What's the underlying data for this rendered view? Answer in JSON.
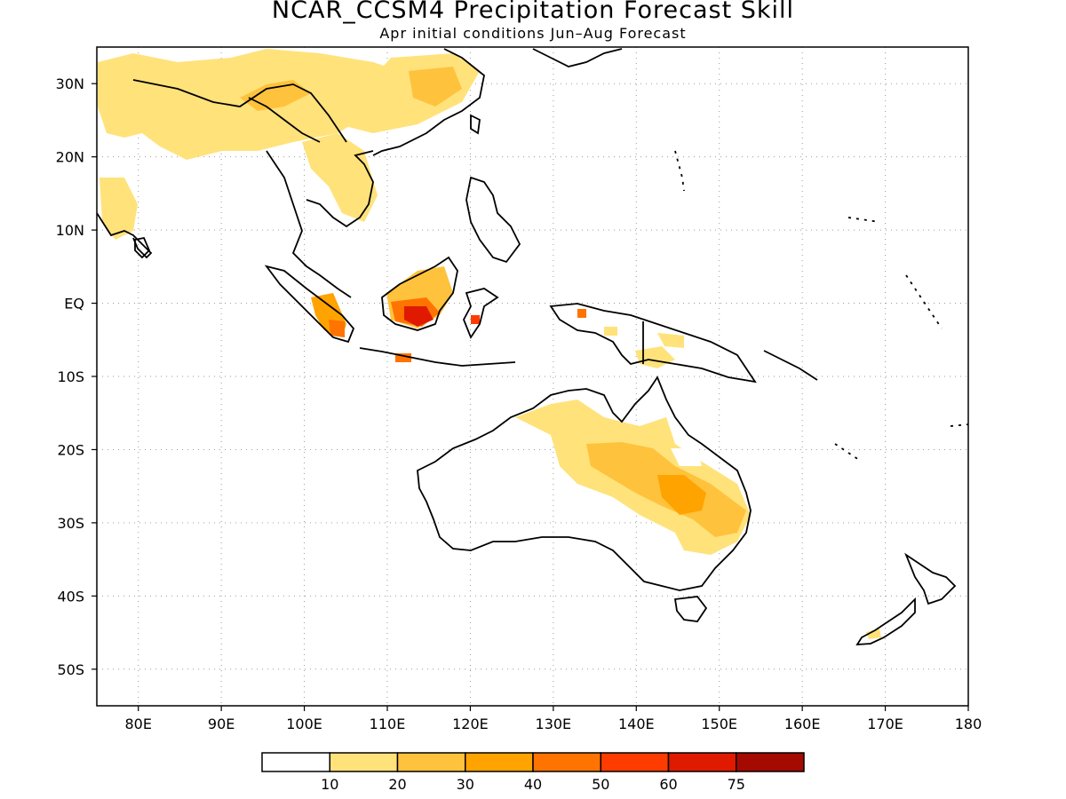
{
  "title": "NCAR_CCSM4 Precipitation Forecast Skill",
  "subtitle": "Apr initial conditions  Jun–Aug Forecast",
  "lat_labels": [
    "30N",
    "20N",
    "10N",
    "EQ",
    "10S",
    "20S",
    "30S",
    "40S",
    "50S"
  ],
  "lon_labels": [
    "80E",
    "90E",
    "100E",
    "110E",
    "120E",
    "130E",
    "140E",
    "150E",
    "160E",
    "170E",
    "180"
  ],
  "map_extent": {
    "lon": [
      75,
      180
    ],
    "lat": [
      -55,
      35
    ]
  },
  "grid": "dotted",
  "colorbar": {
    "labels": [
      "10",
      "20",
      "30",
      "40",
      "50",
      "60",
      "75"
    ],
    "colors": [
      "#ffffff",
      "#ffe27a",
      "#ffc23c",
      "#ffa300",
      "#ff7300",
      "#ff3c00",
      "#e01a00",
      "#a50a00"
    ]
  },
  "skill_areas": [
    {
      "region": "India NW",
      "level": 1
    },
    {
      "region": "Tibet / South China",
      "level": 1
    },
    {
      "region": "Indochina",
      "level": 1
    },
    {
      "region": "Borneo",
      "level": 4
    },
    {
      "region": "Sumatra",
      "level": 3
    },
    {
      "region": "Java",
      "level": 4
    },
    {
      "region": "New Guinea",
      "level": 2
    },
    {
      "region": "Eastern Australia",
      "level": 2
    },
    {
      "region": "New Zealand",
      "level": 1
    }
  ]
}
